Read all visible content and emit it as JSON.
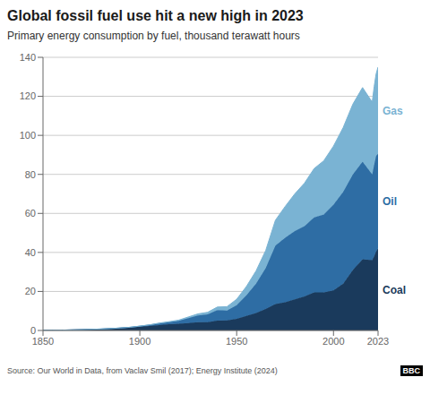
{
  "chart_data": {
    "type": "area",
    "stacked": true,
    "title": "Global fossil fuel use hit a new high in 2023",
    "subtitle": "Primary energy consumption by fuel, thousand terawatt hours",
    "source": "Source: Our World in Data, from Vaclav Smil (2017); Energy Institute (2024)",
    "annotations": [
      "BBC"
    ],
    "x": [
      1850,
      1855,
      1860,
      1865,
      1870,
      1875,
      1880,
      1885,
      1890,
      1895,
      1900,
      1905,
      1910,
      1915,
      1920,
      1925,
      1930,
      1935,
      1940,
      1945,
      1950,
      1955,
      1960,
      1965,
      1970,
      1975,
      1980,
      1985,
      1990,
      1995,
      2000,
      2005,
      2010,
      2015,
      2020,
      2021,
      2022,
      2023
    ],
    "series": [
      {
        "name": "Coal",
        "color": "#1a3a5c",
        "values": [
          0.1,
          0.15,
          0.2,
          0.3,
          0.4,
          0.55,
          0.7,
          0.9,
          1.2,
          1.5,
          1.9,
          2.3,
          2.8,
          3.2,
          3.4,
          3.8,
          4.2,
          4.3,
          5.0,
          5.2,
          6.0,
          7.5,
          9.0,
          11.0,
          13.5,
          14.5,
          16.0,
          17.5,
          19.5,
          19.5,
          20.5,
          24.0,
          31.0,
          36.5,
          36.0,
          38.0,
          40.5,
          42.0
        ]
      },
      {
        "name": "Oil",
        "color": "#2e6da4",
        "values": [
          0,
          0,
          0,
          0,
          0.02,
          0.04,
          0.06,
          0.08,
          0.1,
          0.15,
          0.3,
          0.5,
          0.8,
          1.0,
          1.5,
          2.5,
          3.5,
          4.0,
          5.5,
          5.0,
          7.0,
          10.5,
          15.0,
          21.0,
          30.0,
          33.0,
          35.0,
          36.0,
          38.5,
          40.0,
          44.0,
          47.0,
          49.0,
          50.0,
          44.0,
          47.0,
          49.0,
          48.5
        ]
      },
      {
        "name": "Gas",
        "color": "#7ab3d3",
        "values": [
          0,
          0,
          0,
          0,
          0,
          0,
          0,
          0,
          0,
          0,
          0.05,
          0.1,
          0.2,
          0.3,
          0.4,
          0.6,
          0.8,
          1.0,
          1.5,
          2.0,
          3.0,
          4.5,
          6.5,
          9.0,
          13.0,
          16.0,
          19.0,
          22.0,
          25.0,
          27.5,
          30.0,
          33.0,
          36.0,
          38.0,
          37.0,
          40.0,
          42.0,
          44.5
        ]
      }
    ],
    "xlim": [
      1850,
      2023
    ],
    "xticks": [
      1850,
      1900,
      1950,
      2000,
      2023
    ],
    "ylim": [
      0,
      140
    ],
    "yticks": [
      0,
      20,
      40,
      60,
      80,
      100,
      120,
      140
    ],
    "grid": true
  }
}
